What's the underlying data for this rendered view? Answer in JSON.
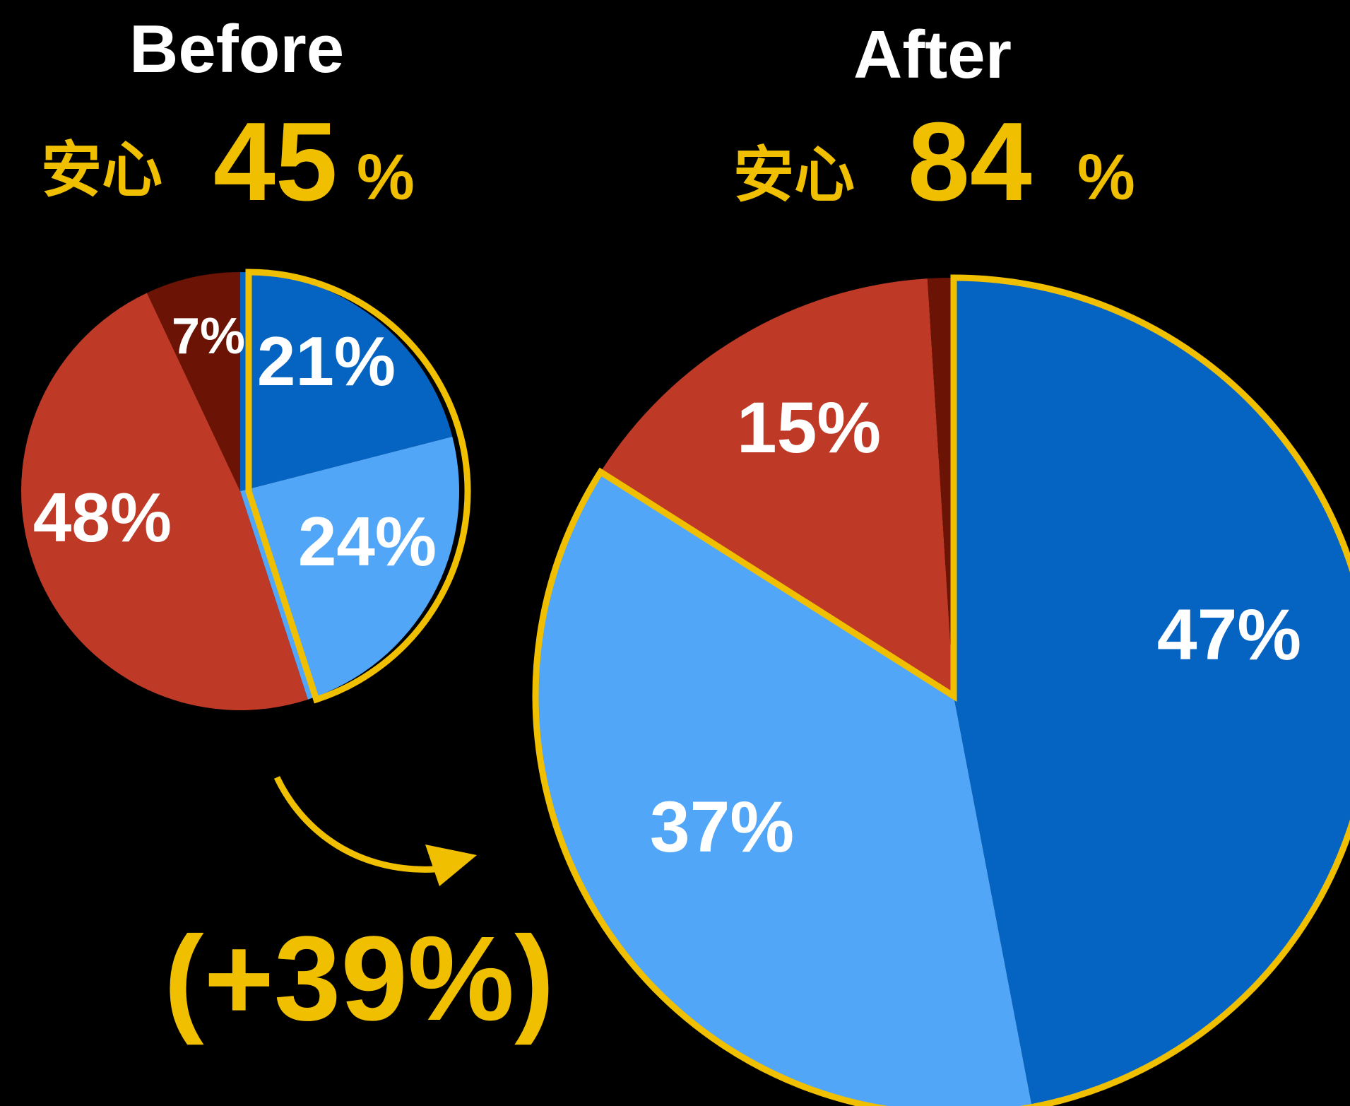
{
  "colors": {
    "background": "#000000",
    "accent_gold": "#f0c000",
    "dark_blue": "#0563c1",
    "light_blue": "#52a6f8",
    "red": "#bf3a26",
    "dark_red": "#6b1406",
    "label_white": "#ffffff"
  },
  "before": {
    "heading": "Before",
    "anshin_label": "安心",
    "anshin_value": "45",
    "anshin_unit": "%"
  },
  "after": {
    "heading": "After",
    "anshin_label": "安心",
    "anshin_value": "84",
    "anshin_unit": "%"
  },
  "change": {
    "text": "(+39%)"
  },
  "arrow_icon": "curved-arrow-right",
  "chart_data": [
    {
      "type": "pie",
      "name": "before",
      "start": "top, clockwise",
      "slices": [
        {
          "label": "21%",
          "value": 21,
          "color": "#0563c1",
          "highlighted": true
        },
        {
          "label": "24%",
          "value": 24,
          "color": "#52a6f8",
          "highlighted": true
        },
        {
          "label": "48%",
          "value": 48,
          "color": "#bf3a26",
          "highlighted": false
        },
        {
          "label": "7%",
          "value": 7,
          "color": "#6b1406",
          "highlighted": false
        }
      ]
    },
    {
      "type": "pie",
      "name": "after",
      "start": "top, clockwise",
      "slices": [
        {
          "label": "47%",
          "value": 47,
          "color": "#0563c1",
          "highlighted": true
        },
        {
          "label": "37%",
          "value": 37,
          "color": "#52a6f8",
          "highlighted": true
        },
        {
          "label": "15%",
          "value": 15,
          "color": "#bf3a26",
          "highlighted": false
        },
        {
          "label": "",
          "value": 1,
          "color": "#6b1406",
          "highlighted": false
        }
      ]
    }
  ]
}
